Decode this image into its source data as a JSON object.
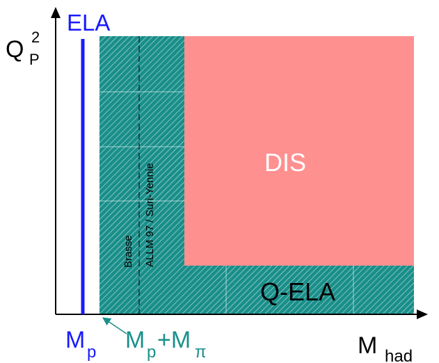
{
  "colors": {
    "axis": "#000000",
    "ela": "#1a1aff",
    "hatched_region": "#1a8f8a",
    "hatch_line": "#ffffff",
    "dis": "#ff9090",
    "text_teal": "#1a8f8a",
    "text_black": "#000000",
    "text_white": "#ffffff"
  },
  "diagram": {
    "y_axis_label": {
      "main": "Q",
      "sup": "2",
      "sub": "P"
    },
    "x_axis_label": {
      "main": "M",
      "sub": "had"
    },
    "ela_label": "ELA",
    "mp_label": {
      "main": "M",
      "sub": "p"
    },
    "mp_mpi_label": {
      "m1": "M",
      "s1": "p",
      "plus": "+M",
      "s2": "π"
    },
    "dis_label": "DIS",
    "qela_label": "Q-ELA",
    "brasse_label": "Brasse",
    "allm_label": "ALLM 97 / Suri-Yennie"
  }
}
